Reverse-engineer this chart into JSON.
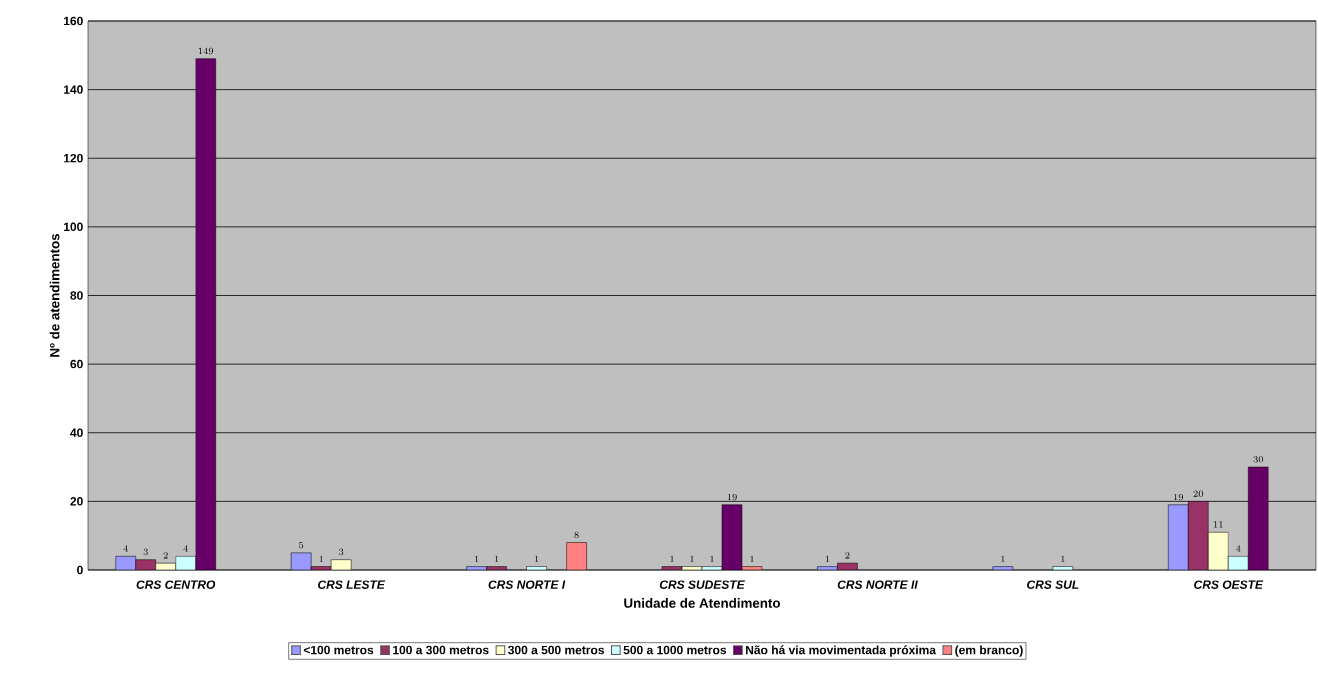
{
  "chart_data": {
    "type": "bar",
    "xlabel": "Unidade de Atendimento",
    "ylabel": "Nº de atendimentos",
    "categories": [
      "CRS CENTRO",
      "CRS LESTE",
      "CRS NORTE I",
      "CRS SUDESTE",
      "CRS NORTE II",
      "CRS SUL",
      "CRS OESTE"
    ],
    "series": [
      {
        "name": "<100 metros",
        "color": "#9999ff",
        "values": [
          4,
          5,
          1,
          null,
          1,
          1,
          19
        ]
      },
      {
        "name": "100 a 300 metros",
        "color": "#993366",
        "values": [
          3,
          1,
          1,
          1,
          2,
          null,
          20
        ]
      },
      {
        "name": "300 a 500 metros",
        "color": "#ffffcc",
        "values": [
          2,
          3,
          null,
          1,
          null,
          null,
          11
        ]
      },
      {
        "name": "500 a 1000 metros",
        "color": "#ccffff",
        "values": [
          4,
          null,
          1,
          1,
          null,
          1,
          4
        ]
      },
      {
        "name": "Não há via movimentada próxima",
        "color": "#660066",
        "values": [
          149,
          null,
          null,
          19,
          null,
          null,
          30
        ]
      },
      {
        "name": "(em branco)",
        "color": "#ff8080",
        "values": [
          null,
          null,
          8,
          1,
          null,
          null,
          null
        ]
      }
    ],
    "ylim": [
      0,
      160
    ],
    "yticks": [
      0,
      20,
      40,
      60,
      80,
      100,
      120,
      140,
      160
    ],
    "grid": "y",
    "legend": "bottom",
    "data_labels": true
  }
}
